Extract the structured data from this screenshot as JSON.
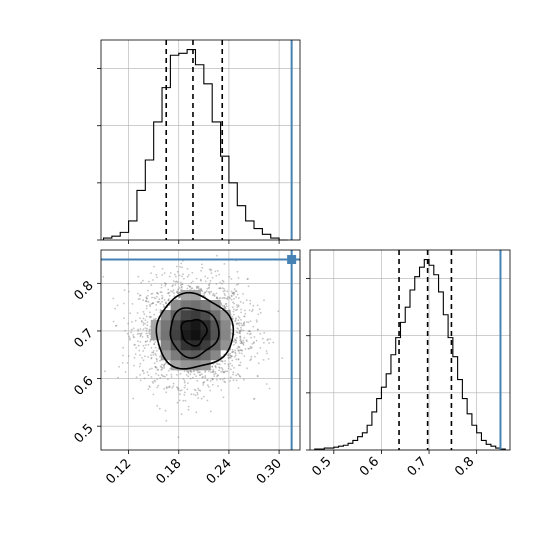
{
  "chart_data": {
    "type": "corner",
    "parameters": [
      "",
      ""
    ],
    "truth": [
      0.315,
      0.85
    ],
    "truth_color": "#4682b4",
    "grid": true,
    "marginals": [
      {
        "param_index": 0,
        "xlim": [
          0.087,
          0.325
        ],
        "quantiles": [
          0.165,
          0.197,
          0.232
        ],
        "hist_edges": [
          0.09,
          0.1,
          0.11,
          0.12,
          0.13,
          0.14,
          0.15,
          0.16,
          0.17,
          0.18,
          0.19,
          0.2,
          0.21,
          0.22,
          0.23,
          0.24,
          0.25,
          0.26,
          0.27,
          0.28,
          0.29,
          0.3,
          0.31
        ],
        "hist_counts": [
          1,
          2,
          4,
          10,
          26,
          42,
          62,
          80,
          97,
          98,
          100,
          92,
          82,
          62,
          44,
          30,
          18,
          10,
          6,
          3,
          1,
          0
        ]
      },
      {
        "param_index": 1,
        "xlim": [
          0.45,
          0.87
        ],
        "quantiles": [
          0.637,
          0.697,
          0.747
        ],
        "hist_edges": [
          0.46,
          0.47,
          0.48,
          0.49,
          0.5,
          0.51,
          0.52,
          0.53,
          0.54,
          0.55,
          0.56,
          0.57,
          0.58,
          0.59,
          0.6,
          0.61,
          0.62,
          0.63,
          0.64,
          0.65,
          0.66,
          0.67,
          0.68,
          0.69,
          0.7,
          0.71,
          0.72,
          0.73,
          0.74,
          0.75,
          0.76,
          0.77,
          0.78,
          0.79,
          0.8,
          0.81,
          0.82,
          0.83,
          0.84,
          0.85,
          0.86
        ],
        "hist_counts": [
          0.5,
          0.5,
          1,
          1,
          1.5,
          2,
          2.5,
          3.5,
          5,
          7,
          9,
          13,
          20,
          27,
          33,
          40,
          50,
          59,
          67,
          75,
          84,
          91,
          96,
          100,
          97,
          92,
          83,
          71,
          59,
          49,
          37,
          27,
          19,
          13,
          9,
          5,
          3,
          2,
          1,
          0.5
        ]
      }
    ],
    "joint": {
      "x_index": 0,
      "y_index": 1,
      "xlim": [
        0.087,
        0.325
      ],
      "ylim": [
        0.45,
        0.87
      ],
      "density_peak": [
        0.198,
        0.698
      ],
      "spread": [
        0.032,
        0.055
      ],
      "contours": [
        {
          "level": 0.39,
          "semi_axes": [
            0.015,
            0.027
          ],
          "wobble": 0.08
        },
        {
          "level": 0.86,
          "semi_axes": [
            0.029,
            0.051
          ],
          "wobble": 0.06
        },
        {
          "level": 0.99,
          "semi_axes": [
            0.046,
            0.078
          ],
          "wobble": 0.05
        }
      ]
    },
    "axes": {
      "param0_ticks": [
        0.12,
        0.18,
        0.24,
        0.3
      ],
      "param0_tick_labels": [
        "0.12",
        "0.18",
        "0.24",
        "0.30"
      ],
      "param1_ticks": [
        0.5,
        0.6,
        0.7,
        0.8
      ],
      "param1_tick_labels": [
        "0.5",
        "0.6",
        "0.7",
        "0.8"
      ],
      "top_hist_y_ticks": [
        0,
        30,
        60,
        90
      ],
      "right_hist_y_ticks": [
        0,
        30,
        60,
        90
      ]
    }
  }
}
